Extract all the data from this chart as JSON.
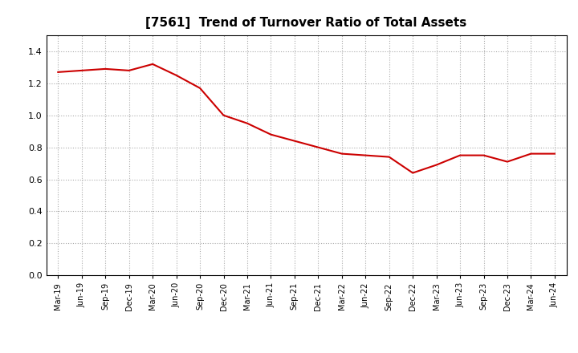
{
  "title": "[7561]  Trend of Turnover Ratio of Total Assets",
  "title_fontsize": 11,
  "line_color": "#cc0000",
  "background_color": "#ffffff",
  "grid_color": "#aaaaaa",
  "ylim": [
    0.0,
    1.5
  ],
  "yticks": [
    0.0,
    0.2,
    0.4,
    0.6,
    0.8,
    1.0,
    1.2,
    1.4
  ],
  "x_labels": [
    "Mar-19",
    "Jun-19",
    "Sep-19",
    "Dec-19",
    "Mar-20",
    "Jun-20",
    "Sep-20",
    "Dec-20",
    "Mar-21",
    "Jun-21",
    "Sep-21",
    "Dec-21",
    "Mar-22",
    "Jun-22",
    "Sep-22",
    "Dec-22",
    "Mar-23",
    "Jun-23",
    "Sep-23",
    "Dec-23",
    "Mar-24",
    "Jun-24"
  ],
  "values": [
    1.27,
    1.28,
    1.29,
    1.28,
    1.32,
    1.25,
    1.17,
    1.0,
    0.95,
    0.88,
    0.84,
    0.8,
    0.76,
    0.75,
    0.74,
    0.64,
    0.69,
    0.75,
    0.75,
    0.71,
    0.76,
    0.76
  ]
}
